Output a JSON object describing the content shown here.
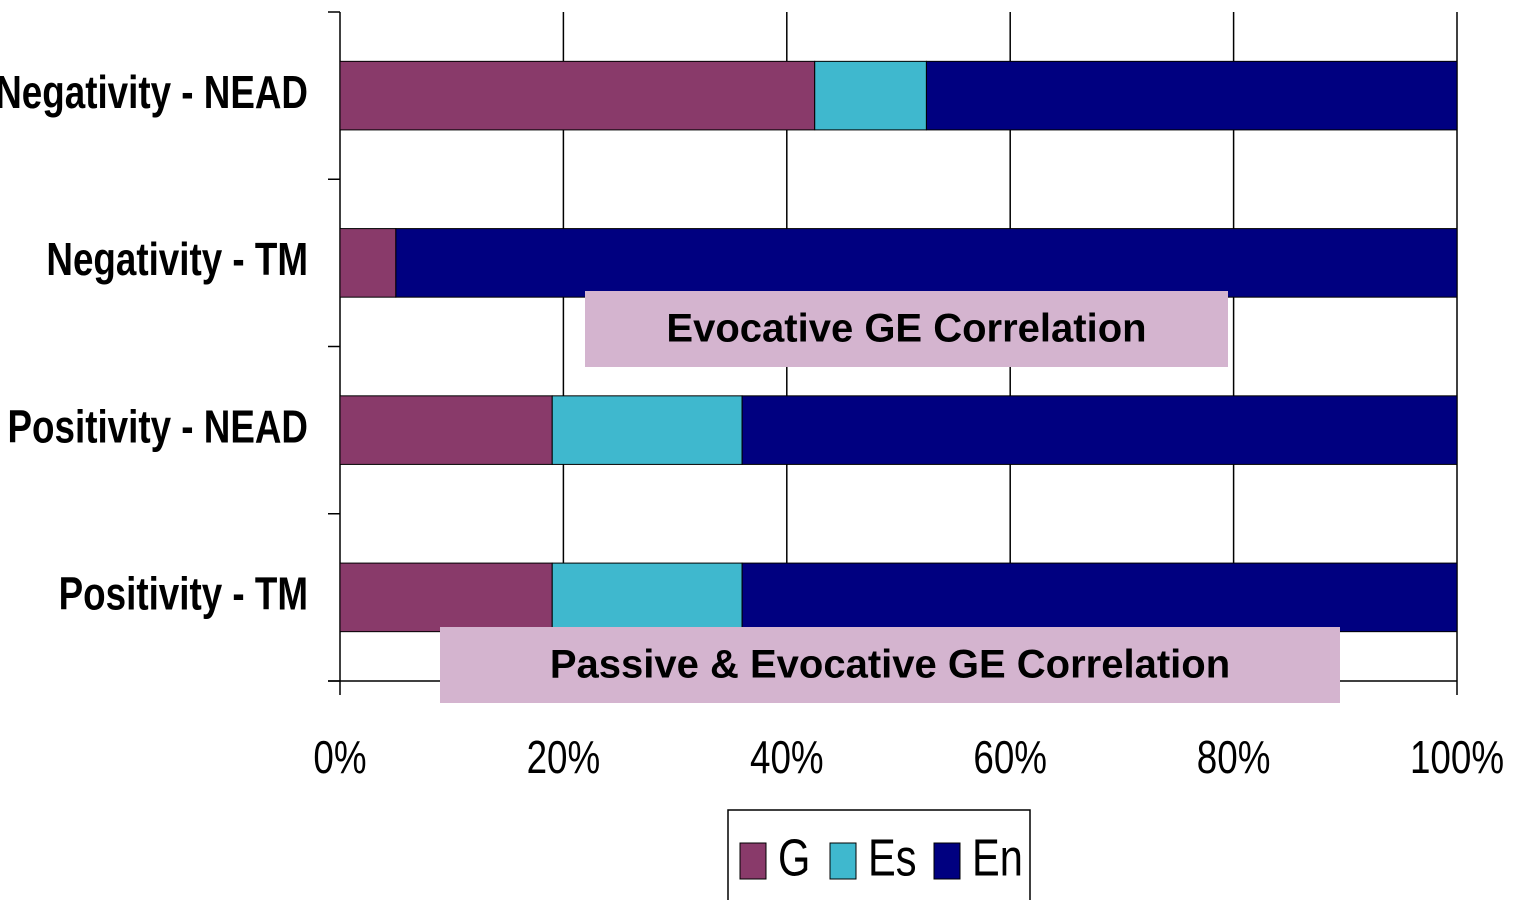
{
  "chart_data": {
    "type": "stacked-barh",
    "categories": [
      "Negativity - NEAD",
      "Negativity - TM",
      "Positivity - NEAD",
      "Positivity - TM"
    ],
    "series": [
      {
        "name": "G",
        "color": "#893a6a",
        "values": [
          42.5,
          5,
          19,
          19
        ]
      },
      {
        "name": "Es",
        "color": "#3fb8ce",
        "values": [
          10,
          0,
          17,
          17
        ]
      },
      {
        "name": "En",
        "color": "#000080",
        "values": [
          47.5,
          95,
          64,
          64
        ]
      }
    ],
    "xlim": [
      0,
      100
    ],
    "xticks": [
      {
        "value": 0,
        "label": "0%"
      },
      {
        "value": 20,
        "label": "20%"
      },
      {
        "value": 40,
        "label": "40%"
      },
      {
        "value": 60,
        "label": "60%"
      },
      {
        "value": 80,
        "label": "80%"
      },
      {
        "value": 100,
        "label": "100%"
      }
    ],
    "grid": true,
    "legend": "bottom",
    "annotations": [
      "Evocative GE Correlation",
      "Passive & Evocative GE Correlation"
    ]
  }
}
